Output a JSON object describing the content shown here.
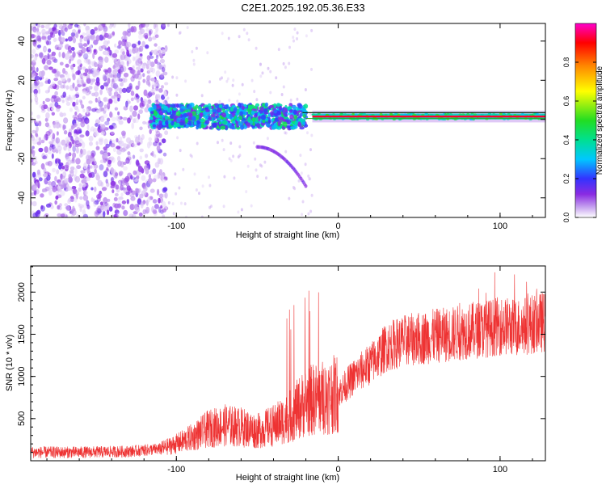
{
  "figure_title": "C2E1.2025.192.05.36.E33",
  "colors": {
    "snr_line": "#ee3333",
    "ref_band": "#22aa22",
    "colormap": [
      "#ffffff",
      "#c9a8f0",
      "#8a2be2",
      "#3333ff",
      "#00c8ff",
      "#00e090",
      "#22dd22",
      "#ffff00",
      "#ff8800",
      "#ff0000",
      "#ff00cc"
    ]
  },
  "chart_data": [
    {
      "type": "heatmap",
      "title": "C2E1.2025.192.05.36.E33",
      "xlabel": "Height of straight line (km)",
      "ylabel": "Frequency (Hz)",
      "xlim": [
        -190,
        128
      ],
      "ylim": [
        -50,
        49
      ],
      "x_ticks": [
        -100,
        0,
        100
      ],
      "y_ticks": [
        -40,
        -20,
        0,
        20,
        40
      ],
      "colorbar": {
        "label": "Normalized spectral amplitude",
        "range": [
          0,
          1
        ],
        "ticks": [
          0.0,
          0.2,
          0.4,
          0.6,
          0.8
        ]
      },
      "regions": [
        {
          "x_range": [
            -190,
            -106
          ],
          "y_range": [
            -50,
            49
          ],
          "amplitude": "0.05-0.25",
          "pattern": "scattered noise"
        },
        {
          "x_range": [
            -116,
            -20
          ],
          "y_range": [
            -4,
            8
          ],
          "amplitude": "0.2-0.5",
          "pattern": "dense band"
        },
        {
          "x_range": [
            -16,
            128
          ],
          "y_range": [
            -1,
            4
          ],
          "amplitude": "0.3-0.95",
          "pattern": "steady line at ~1.5 Hz"
        }
      ],
      "reference_lines_hz": [
        0.5,
        3.5
      ],
      "grid": false
    },
    {
      "type": "line",
      "xlabel": "Height of straight line (km)",
      "ylabel": "SNR (10 * v/v)",
      "xlim": [
        -190,
        128
      ],
      "ylim": [
        0,
        2310
      ],
      "x_ticks": [
        -100,
        0,
        100
      ],
      "y_ticks": [
        500,
        1000,
        1500,
        2000
      ],
      "series": [
        {
          "x": [
            -190,
            -160,
            -130,
            -110,
            -100,
            -90,
            -80,
            -70,
            -60,
            -50,
            -40,
            -30,
            -20,
            -10,
            0,
            10,
            20,
            30,
            40,
            50,
            60,
            70,
            80,
            90,
            100,
            110,
            120,
            128
          ],
          "y": [
            100,
            100,
            110,
            140,
            200,
            280,
            380,
            420,
            400,
            350,
            420,
            520,
            700,
            750,
            800,
            1000,
            1150,
            1350,
            1420,
            1450,
            1480,
            1500,
            1540,
            1560,
            1600,
            1580,
            1620,
            1650
          ]
        }
      ],
      "grid": false
    }
  ]
}
